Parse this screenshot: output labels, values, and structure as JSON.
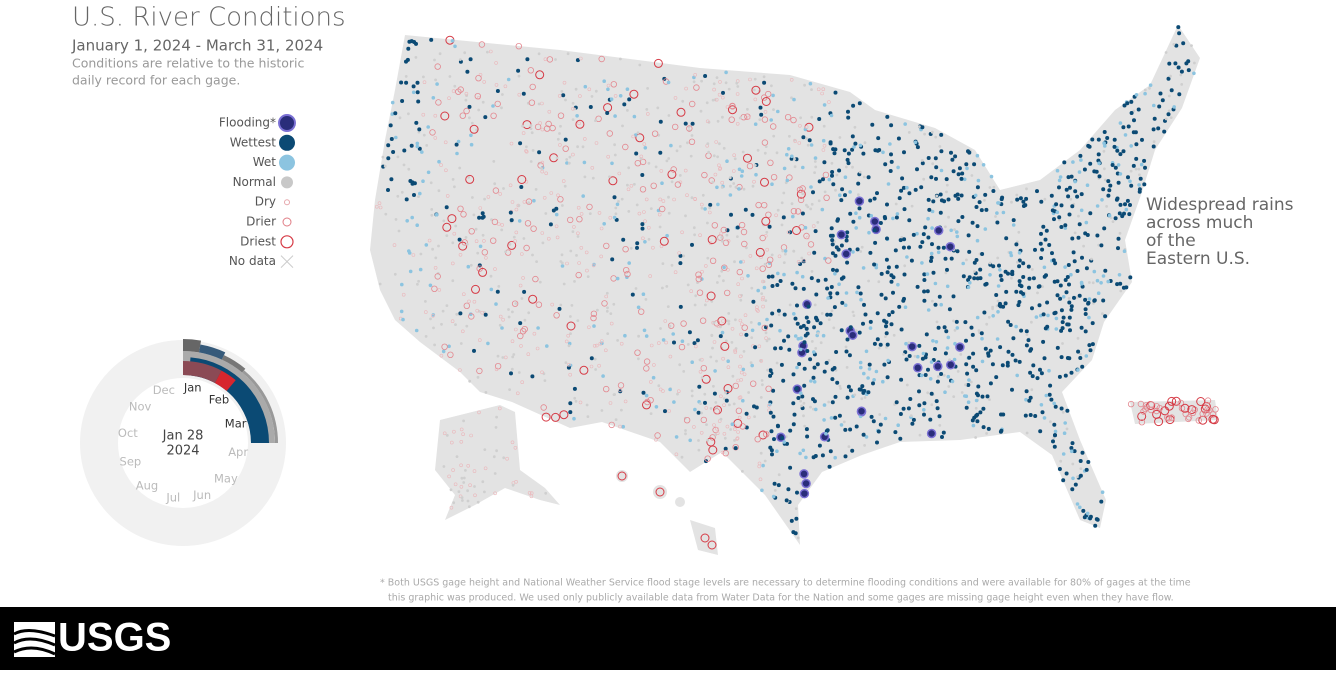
{
  "header": {
    "title": "U.S. River Conditions",
    "subtitle": "January 1, 2024 - March 31, 2024",
    "description": [
      "Conditions are relative to the historic",
      "daily record for each gage."
    ]
  },
  "legend": {
    "items": [
      "Flooding*",
      "Wettest",
      "Wet",
      "Normal",
      "Dry",
      "Drier",
      "Driest",
      "No data"
    ]
  },
  "dial": {
    "months": [
      "Jan",
      "Feb",
      "Mar",
      "Apr",
      "May",
      "Jun",
      "Jul",
      "Aug",
      "Sep",
      "Oct",
      "Nov",
      "Dec"
    ],
    "date": "Jan 28",
    "year": "2024"
  },
  "annotation": [
    "Widespread rains",
    "across much",
    "of the",
    "Eastern U.S."
  ],
  "footnote": [
    "* Both USGS gage height and National Weather Service flood stage levels are necessary to determine flooding conditions and were available for 80% of gages at the time",
    "this graphic was produced. We used only publicly available data from Water Data for the Nation and some gages are missing gage height even when they have flow."
  ],
  "footer": {
    "logo": "USGS"
  }
}
